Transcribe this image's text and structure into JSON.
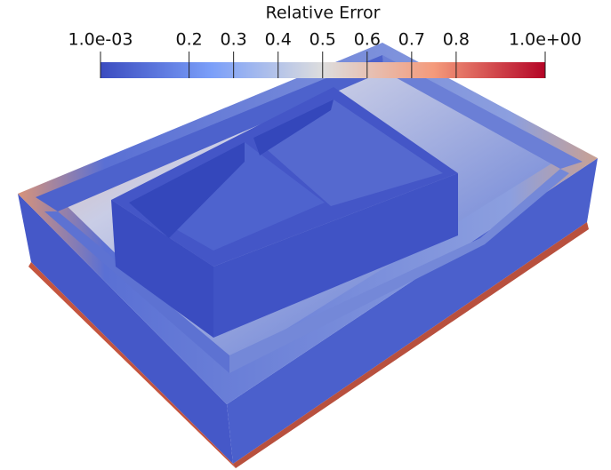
{
  "colorbar": {
    "title": "Relative Error",
    "lim": [
      0.001,
      1
    ],
    "ticks": [
      {
        "value": 0.001,
        "label": "1.0e-03"
      },
      0.2,
      0.3,
      0.4,
      0.5,
      0.6,
      0.7,
      0.8,
      {
        "value": 1,
        "label": "1.0e+00"
      }
    ],
    "colormap": [
      "#3b4cc0",
      "#7b9ff9",
      "#dddddd",
      "#f49a7b",
      "#b40426"
    ]
  }
}
